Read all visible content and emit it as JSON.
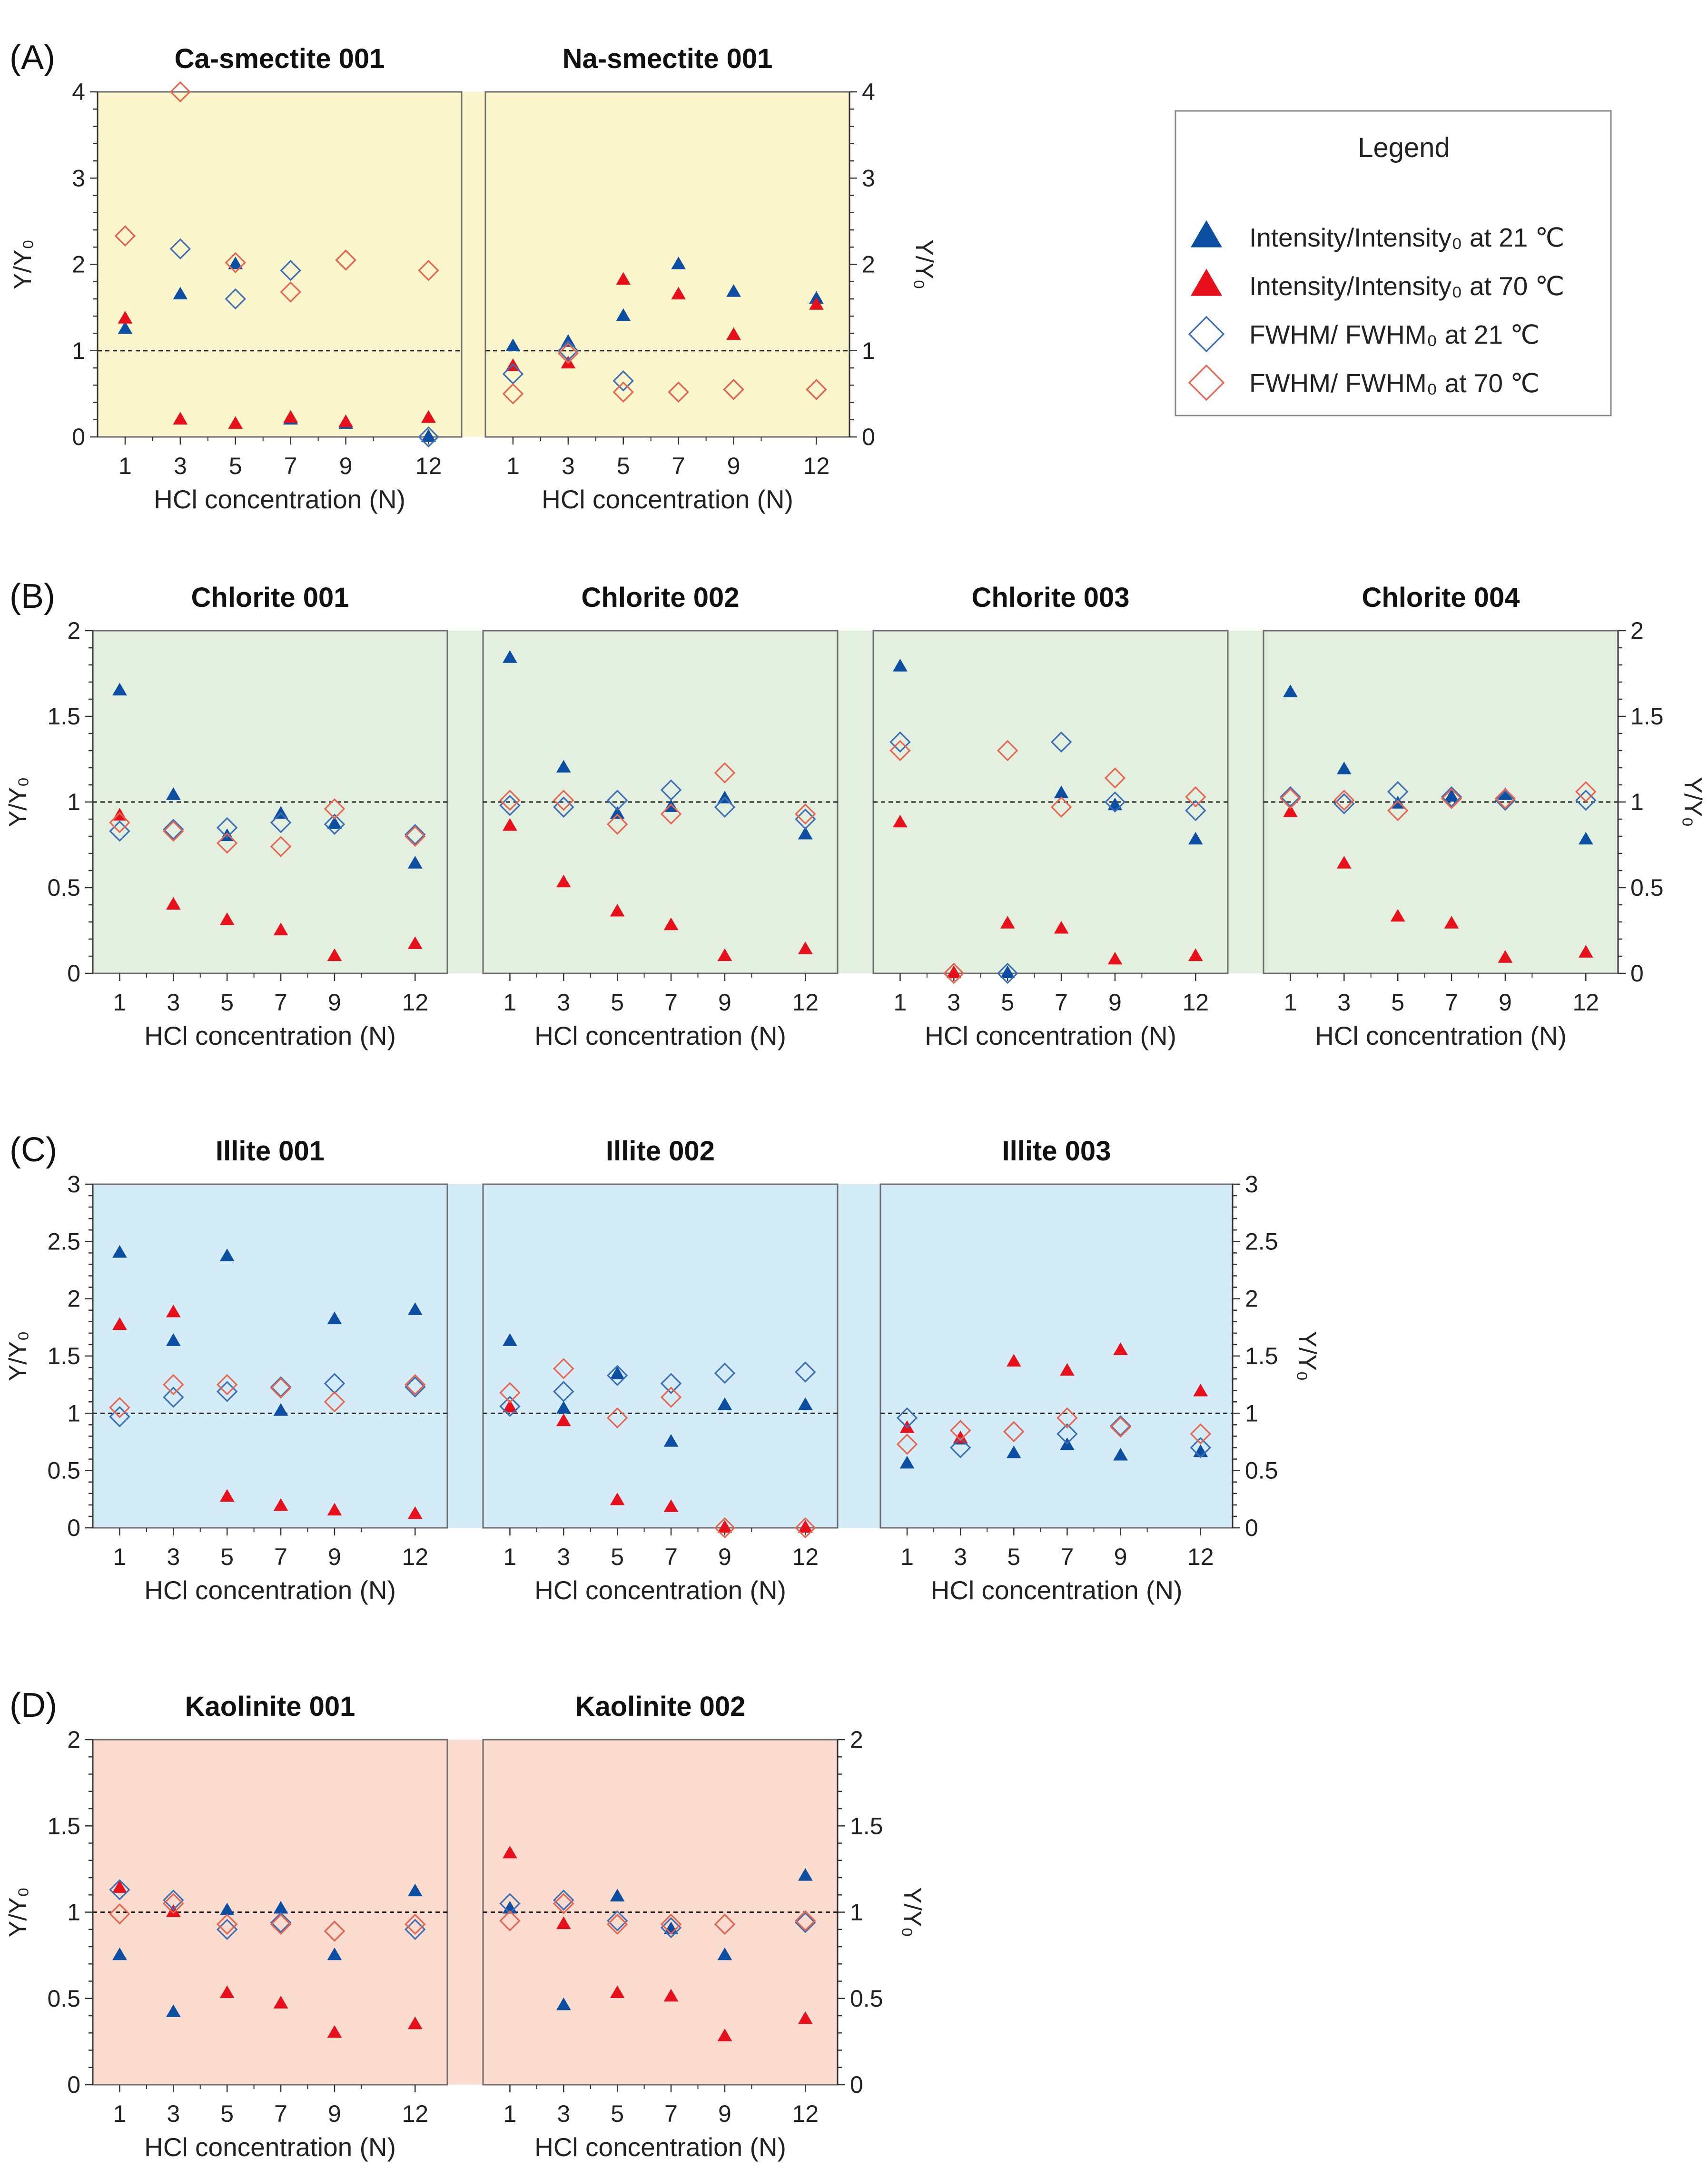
{
  "figure": {
    "colors": {
      "blue": "#0b4ea2",
      "red": "#e8111b",
      "blue_open": "#3c6fb5",
      "red_open": "#e8654f",
      "ref_line": "#222222",
      "frame": "#6e6e6e"
    },
    "legend": {
      "title": "Legend",
      "items": [
        {
          "label": "Intensity/Intensity₀ at 21 ℃",
          "marker": "triangle-filled",
          "color": "#0b4ea2"
        },
        {
          "label": "Intensity/Intensity₀ at 70 ℃",
          "marker": "triangle-filled",
          "color": "#e8111b"
        },
        {
          "label": "FWHM/ FWHM₀ at 21 ℃",
          "marker": "diamond-open",
          "color": "#3c6fb5"
        },
        {
          "label": "FWHM/ FWHM₀ at 70 ℃",
          "marker": "diamond-open",
          "color": "#e8654f"
        }
      ]
    }
  },
  "chart_data": [
    {
      "id": "A1",
      "panel": "(A)",
      "type": "scatter",
      "title": "Ca-smectite 001",
      "bg": "#fbf6cc",
      "xlabel": "HCl concentration (N)",
      "ylabel": "Y/Y₀",
      "ylabel_side": "left",
      "ylim": [
        0,
        4
      ],
      "yticks": [
        "0",
        "1",
        "2",
        "3",
        "4"
      ],
      "x": [
        1,
        3,
        5,
        7,
        9,
        12
      ],
      "xticklabels": [
        "1",
        "3",
        "5",
        "7",
        "9",
        "12"
      ],
      "ref_line": 1,
      "series": [
        {
          "name": "Intensity/Intensity₀ at 21 ℃",
          "values": [
            1.25,
            1.65,
            2.0,
            0.2,
            0.15,
            0
          ]
        },
        {
          "name": "Intensity/Intensity₀ at 70 ℃",
          "values": [
            1.37,
            0.2,
            0.15,
            0.22,
            0.17,
            0.22
          ]
        },
        {
          "name": "FWHM/ FWHM₀ at 21 ℃",
          "values": [
            2.33,
            2.18,
            1.6,
            1.93,
            2.05,
            0
          ]
        },
        {
          "name": "FWHM/ FWHM₀ at 70 ℃",
          "values": [
            2.33,
            4.0,
            2.02,
            1.68,
            2.05,
            1.93
          ]
        }
      ]
    },
    {
      "id": "A2",
      "panel": "",
      "type": "scatter",
      "title": "Na-smectite 001",
      "bg": "#fbf6cc",
      "xlabel": "HCl concentration (N)",
      "ylabel": "Y/Y₀",
      "ylabel_side": "right",
      "ylim": [
        0,
        4
      ],
      "yticks": [
        "0",
        "1",
        "2",
        "3",
        "4"
      ],
      "x": [
        1,
        3,
        5,
        7,
        9,
        12
      ],
      "xticklabels": [
        "1",
        "3",
        "5",
        "7",
        "9",
        "12"
      ],
      "ref_line": 1,
      "series": [
        {
          "name": "Intensity/Intensity₀ at 21 ℃",
          "values": [
            1.05,
            1.1,
            1.4,
            2.0,
            1.68,
            1.6
          ]
        },
        {
          "name": "Intensity/Intensity₀ at 70 ℃",
          "values": [
            0.82,
            0.85,
            1.82,
            1.65,
            1.18,
            1.53
          ]
        },
        {
          "name": "FWHM/ FWHM₀ at 21 ℃",
          "values": [
            0.73,
            1.0,
            0.65,
            0.52,
            0.55,
            0.55
          ]
        },
        {
          "name": "FWHM/ FWHM₀ at 70 ℃",
          "values": [
            0.5,
            0.97,
            0.52,
            0.52,
            0.55,
            0.55
          ]
        }
      ]
    },
    {
      "id": "B1",
      "panel": "(B)",
      "type": "scatter",
      "title": "Chlorite 001",
      "bg": "#e3f0e0",
      "xlabel": "HCl concentration (N)",
      "ylabel": "Y/Y₀",
      "ylabel_side": "left",
      "ylim": [
        0,
        2
      ],
      "yticks": [
        "0",
        "0.5",
        "1",
        "1.5",
        "2"
      ],
      "x": [
        1,
        3,
        5,
        7,
        9,
        12
      ],
      "xticklabels": [
        "1",
        "3",
        "5",
        "7",
        "9",
        "12"
      ],
      "ref_line": 1,
      "series": [
        {
          "name": "Intensity/Intensity₀ at 21 ℃",
          "values": [
            1.65,
            1.04,
            0.8,
            0.93,
            0.87,
            0.64
          ]
        },
        {
          "name": "Intensity/Intensity₀ at 70 ℃",
          "values": [
            0.92,
            0.4,
            0.31,
            0.25,
            0.1,
            0.17
          ]
        },
        {
          "name": "FWHM/ FWHM₀ at 21 ℃",
          "values": [
            0.83,
            0.84,
            0.85,
            0.88,
            0.87,
            0.81
          ]
        },
        {
          "name": "FWHM/ FWHM₀ at 70 ℃",
          "values": [
            0.88,
            0.83,
            0.76,
            0.74,
            0.96,
            0.8
          ]
        }
      ]
    },
    {
      "id": "B2",
      "panel": "",
      "type": "scatter",
      "title": "Chlorite 002",
      "bg": "#e3f0e0",
      "xlabel": "HCl concentration (N)",
      "ylabel": "",
      "ylabel_side": "none",
      "ylim": [
        0,
        2
      ],
      "yticks": [
        "0",
        "0.5",
        "1",
        "1.5",
        "2"
      ],
      "x": [
        1,
        3,
        5,
        7,
        9,
        12
      ],
      "xticklabels": [
        "1",
        "3",
        "5",
        "7",
        "9",
        "12"
      ],
      "ref_line": 1,
      "series": [
        {
          "name": "Intensity/Intensity₀ at 21 ℃",
          "values": [
            1.84,
            1.2,
            0.93,
            0.97,
            1.02,
            0.81
          ]
        },
        {
          "name": "Intensity/Intensity₀ at 70 ℃",
          "values": [
            0.86,
            0.53,
            0.36,
            0.28,
            0.1,
            0.14
          ]
        },
        {
          "name": "FWHM/ FWHM₀ at 21 ℃",
          "values": [
            0.98,
            0.97,
            1.01,
            1.07,
            0.97,
            0.9
          ]
        },
        {
          "name": "FWHM/ FWHM₀ at 70 ℃",
          "values": [
            1.01,
            1.01,
            0.87,
            0.93,
            1.17,
            0.93
          ]
        }
      ]
    },
    {
      "id": "B3",
      "panel": "",
      "type": "scatter",
      "title": "Chlorite 003",
      "bg": "#e3f0e0",
      "xlabel": "HCl concentration (N)",
      "ylabel": "",
      "ylabel_side": "none",
      "ylim": [
        0,
        2
      ],
      "yticks": [
        "0",
        "0.5",
        "1",
        "1.5",
        "2"
      ],
      "x": [
        1,
        3,
        5,
        7,
        9,
        12
      ],
      "xticklabels": [
        "1",
        "3",
        "5",
        "7",
        "9",
        "12"
      ],
      "ref_line": 1,
      "series": [
        {
          "name": "Intensity/Intensity₀ at 21 ℃",
          "values": [
            1.79,
            0,
            0,
            1.05,
            0.98,
            0.78
          ]
        },
        {
          "name": "Intensity/Intensity₀ at 70 ℃",
          "values": [
            0.88,
            0,
            0.29,
            0.26,
            0.08,
            0.1
          ]
        },
        {
          "name": "FWHM/ FWHM₀ at 21 ℃",
          "values": [
            1.35,
            0,
            0,
            1.35,
            1.0,
            0.95
          ]
        },
        {
          "name": "FWHM/ FWHM₀ at 70 ℃",
          "values": [
            1.3,
            0,
            1.3,
            0.97,
            1.14,
            1.03
          ]
        }
      ]
    },
    {
      "id": "B4",
      "panel": "",
      "type": "scatter",
      "title": "Chlorite 004",
      "bg": "#e3f0e0",
      "xlabel": "HCl concentration (N)",
      "ylabel": "Y/Y₀",
      "ylabel_side": "right",
      "ylim": [
        0,
        2
      ],
      "yticks": [
        "0",
        "0.5",
        "1",
        "1.5",
        "2"
      ],
      "x": [
        1,
        3,
        5,
        7,
        9,
        12
      ],
      "xticklabels": [
        "1",
        "3",
        "5",
        "7",
        "9",
        "12"
      ],
      "ref_line": 1,
      "series": [
        {
          "name": "Intensity/Intensity₀ at 21 ℃",
          "values": [
            1.64,
            1.19,
            0.99,
            1.03,
            1.04,
            0.78
          ]
        },
        {
          "name": "Intensity/Intensity₀ at 70 ℃",
          "values": [
            0.94,
            0.64,
            0.33,
            0.29,
            0.09,
            0.12
          ]
        },
        {
          "name": "FWHM/ FWHM₀ at 21 ℃",
          "values": [
            1.03,
            0.99,
            1.06,
            1.03,
            1.01,
            1.01
          ]
        },
        {
          "name": "FWHM/ FWHM₀ at 70 ℃",
          "values": [
            1.02,
            1.01,
            0.95,
            1.02,
            1.02,
            1.06
          ]
        }
      ]
    },
    {
      "id": "C1",
      "panel": "(C)",
      "type": "scatter",
      "title": "Illite 001",
      "bg": "#d4ebf8",
      "xlabel": "HCl concentration (N)",
      "ylabel": "Y/Y₀",
      "ylabel_side": "left",
      "ylim": [
        0,
        3
      ],
      "yticks": [
        "0",
        "0.5",
        "1",
        "1.5",
        "2",
        "2.5",
        "3"
      ],
      "x": [
        1,
        3,
        5,
        7,
        9,
        12
      ],
      "xticklabels": [
        "1",
        "3",
        "5",
        "7",
        "9",
        "12"
      ],
      "ref_line": 1,
      "series": [
        {
          "name": "Intensity/Intensity₀ at 21 ℃",
          "values": [
            2.4,
            1.63,
            2.37,
            1.02,
            1.82,
            1.9
          ]
        },
        {
          "name": "Intensity/Intensity₀ at 70 ℃",
          "values": [
            1.77,
            1.88,
            0.27,
            0.19,
            0.15,
            0.12
          ]
        },
        {
          "name": "FWHM/ FWHM₀ at 21 ℃",
          "values": [
            0.97,
            1.14,
            1.19,
            1.23,
            1.26,
            1.23
          ]
        },
        {
          "name": "FWHM/ FWHM₀ at 70 ℃",
          "values": [
            1.05,
            1.25,
            1.25,
            1.22,
            1.1,
            1.25
          ]
        }
      ]
    },
    {
      "id": "C2",
      "panel": "",
      "type": "scatter",
      "title": "Illite 002",
      "bg": "#d4ebf8",
      "xlabel": "HCl concentration (N)",
      "ylabel": "",
      "ylabel_side": "none",
      "ylim": [
        0,
        3
      ],
      "yticks": [
        "0",
        "0.5",
        "1",
        "1.5",
        "2",
        "2.5",
        "3"
      ],
      "x": [
        1,
        3,
        5,
        7,
        9,
        12
      ],
      "xticklabels": [
        "1",
        "3",
        "5",
        "7",
        "9",
        "12"
      ],
      "ref_line": 1,
      "series": [
        {
          "name": "Intensity/Intensity₀ at 21 ℃",
          "values": [
            1.63,
            1.04,
            1.34,
            0.75,
            1.07,
            1.07
          ]
        },
        {
          "name": "Intensity/Intensity₀ at 70 ℃",
          "values": [
            1.05,
            0.93,
            0.24,
            0.18,
            0,
            0
          ]
        },
        {
          "name": "FWHM/ FWHM₀ at 21 ℃",
          "values": [
            1.06,
            1.19,
            1.33,
            1.26,
            1.35,
            1.36
          ]
        },
        {
          "name": "FWHM/ FWHM₀ at 70 ℃",
          "values": [
            1.18,
            1.39,
            0.96,
            1.14,
            0,
            0
          ]
        }
      ]
    },
    {
      "id": "C3",
      "panel": "",
      "type": "scatter",
      "title": "Illite 003",
      "bg": "#d4ebf8",
      "xlabel": "HCl concentration (N)",
      "ylabel": "Y/Y₀",
      "ylabel_side": "right",
      "ylim": [
        0,
        3
      ],
      "yticks": [
        "0",
        "0.5",
        "1",
        "1.5",
        "2",
        "2.5",
        "3"
      ],
      "x": [
        1,
        3,
        5,
        7,
        9,
        12
      ],
      "xticklabels": [
        "1",
        "3",
        "5",
        "7",
        "9",
        "12"
      ],
      "ref_line": 1,
      "series": [
        {
          "name": "Intensity/Intensity₀ at 21 ℃",
          "values": [
            0.56,
            0.77,
            0.65,
            0.72,
            0.63,
            0.66
          ]
        },
        {
          "name": "Intensity/Intensity₀ at 70 ℃",
          "values": [
            0.87,
            0.78,
            1.45,
            1.37,
            1.55,
            1.19
          ]
        },
        {
          "name": "FWHM/ FWHM₀ at 21 ℃",
          "values": [
            0.96,
            0.7,
            0.84,
            0.82,
            0.89,
            0.7
          ]
        },
        {
          "name": "FWHM/ FWHM₀ at 70 ℃",
          "values": [
            0.73,
            0.85,
            0.84,
            0.96,
            0.88,
            0.82
          ]
        }
      ]
    },
    {
      "id": "D1",
      "panel": "(D)",
      "type": "scatter",
      "title": "Kaolinite 001",
      "bg": "#fbdccf",
      "xlabel": "HCl concentration (N)",
      "ylabel": "Y/Y₀",
      "ylabel_side": "left",
      "ylim": [
        0,
        2
      ],
      "yticks": [
        "0",
        "0.5",
        "1",
        "1.5",
        "2"
      ],
      "x": [
        1,
        3,
        5,
        7,
        9,
        12
      ],
      "xticklabels": [
        "1",
        "3",
        "5",
        "7",
        "9",
        "12"
      ],
      "ref_line": 1,
      "series": [
        {
          "name": "Intensity/Intensity₀ at 21 ℃",
          "values": [
            0.75,
            0.42,
            1.01,
            1.02,
            0.75,
            1.12
          ]
        },
        {
          "name": "Intensity/Intensity₀ at 70 ℃",
          "values": [
            1.14,
            1.0,
            0.53,
            0.47,
            0.3,
            0.35
          ]
        },
        {
          "name": "FWHM/ FWHM₀ at 21 ℃",
          "values": [
            1.13,
            1.07,
            0.9,
            0.94,
            0.89,
            0.9
          ]
        },
        {
          "name": "FWHM/ FWHM₀ at 70 ℃",
          "values": [
            0.99,
            1.05,
            0.93,
            0.93,
            0.89,
            0.93
          ]
        }
      ]
    },
    {
      "id": "D2",
      "panel": "",
      "type": "scatter",
      "title": "Kaolinite 002",
      "bg": "#fbdccf",
      "xlabel": "HCl concentration (N)",
      "ylabel": "Y/Y₀",
      "ylabel_side": "right",
      "ylim": [
        0,
        2
      ],
      "yticks": [
        "0",
        "0.5",
        "1",
        "1.5",
        "2"
      ],
      "x": [
        1,
        3,
        5,
        7,
        9,
        12
      ],
      "xticklabels": [
        "1",
        "3",
        "5",
        "7",
        "9",
        "12"
      ],
      "ref_line": 1,
      "series": [
        {
          "name": "Intensity/Intensity₀ at 21 ℃",
          "values": [
            1.02,
            0.46,
            1.09,
            0.9,
            0.75,
            1.21
          ]
        },
        {
          "name": "Intensity/Intensity₀ at 70 ℃",
          "values": [
            1.34,
            0.93,
            0.53,
            0.51,
            0.28,
            0.38
          ]
        },
        {
          "name": "FWHM/ FWHM₀ at 21 ℃",
          "values": [
            1.05,
            1.07,
            0.95,
            0.91,
            0.93,
            0.94
          ]
        },
        {
          "name": "FWHM/ FWHM₀ at 70 ℃",
          "values": [
            0.95,
            1.05,
            0.93,
            0.93,
            0.93,
            0.95
          ]
        }
      ]
    }
  ]
}
